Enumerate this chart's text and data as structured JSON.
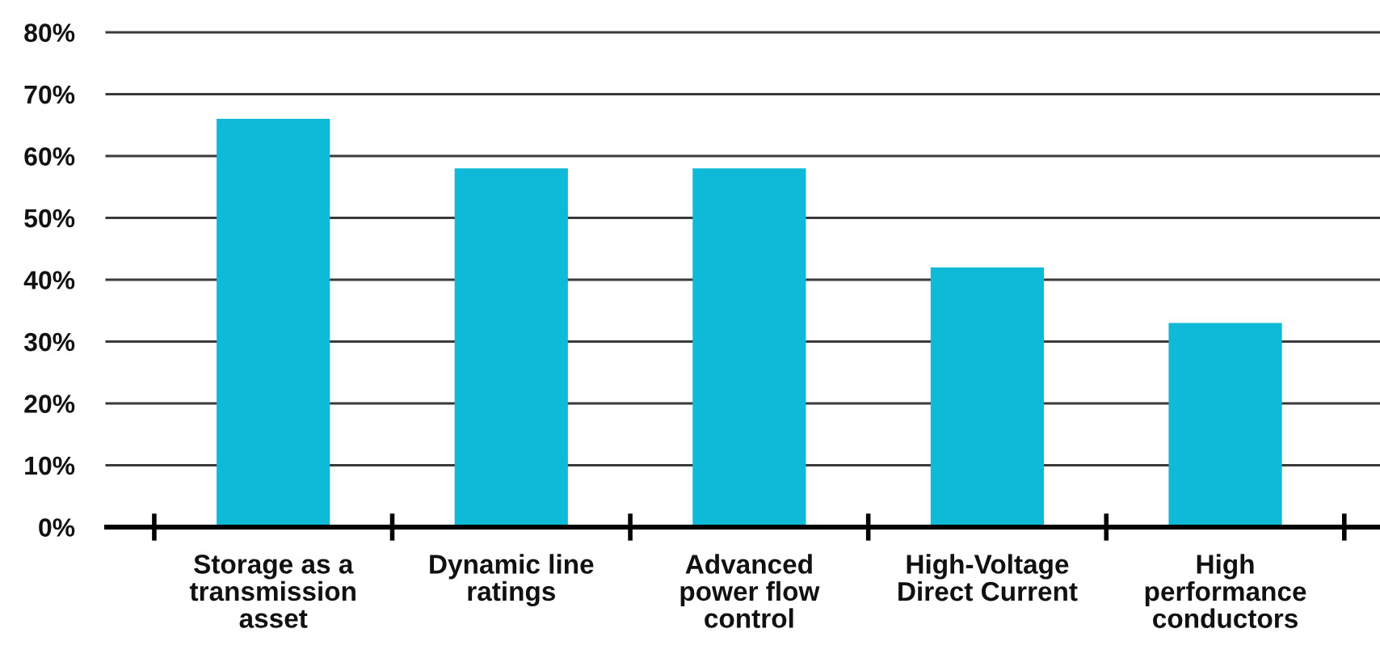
{
  "chart_data": {
    "type": "bar",
    "categories": [
      "Storage as a\ntransmission\nasset",
      "Dynamic line\nratings",
      "Advanced\npower flow\ncontrol",
      "High-Voltage\nDirect Current",
      "High\nperformance\nconductors"
    ],
    "values": [
      66,
      58,
      58,
      42,
      33
    ],
    "color": "#0fbad9",
    "ylim": [
      0,
      80
    ],
    "yticks": [
      {
        "value": 0,
        "label": "0%"
      },
      {
        "value": 10,
        "label": "10%"
      },
      {
        "value": 20,
        "label": "20%"
      },
      {
        "value": 30,
        "label": "30%"
      },
      {
        "value": 40,
        "label": "40%"
      },
      {
        "value": 50,
        "label": "50%"
      },
      {
        "value": 60,
        "label": "60%"
      },
      {
        "value": 70,
        "label": "70%"
      },
      {
        "value": 80,
        "label": "80%"
      }
    ],
    "grid": "y"
  }
}
